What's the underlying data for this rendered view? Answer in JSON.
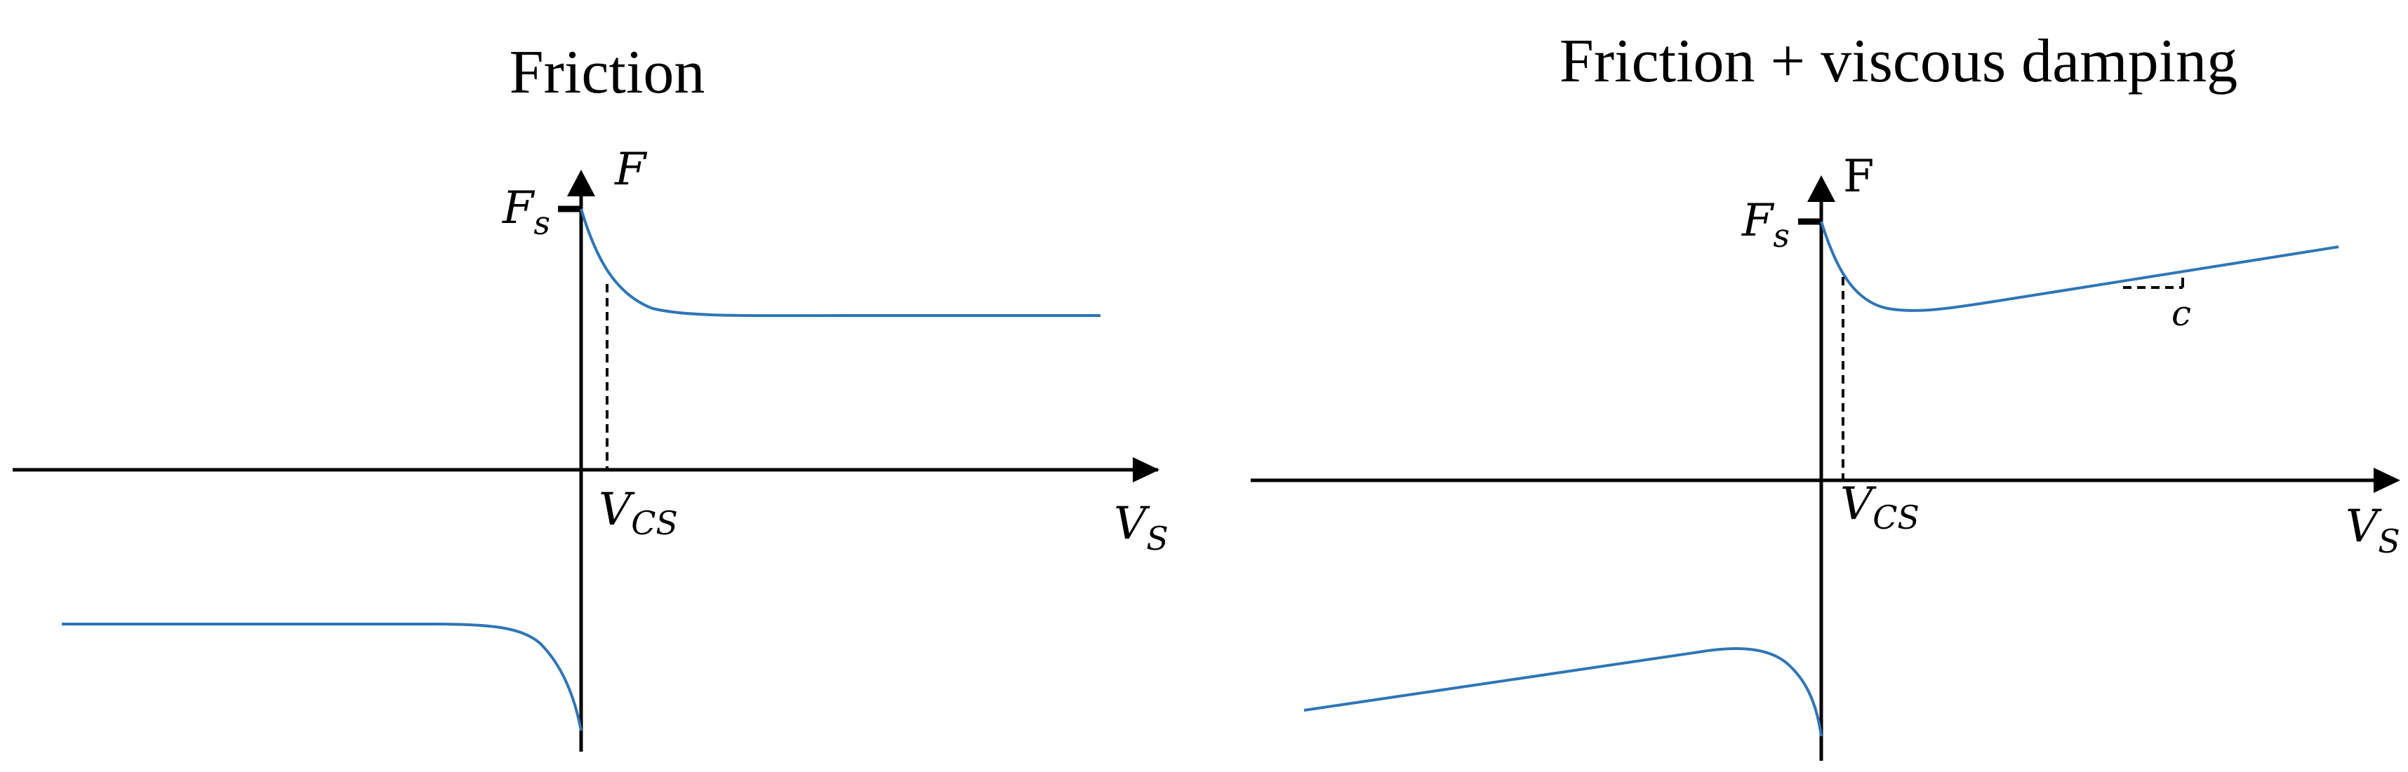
{
  "colors": {
    "curve": "#2E75B6",
    "axis": "#000000"
  },
  "panels": [
    {
      "title": "Friction",
      "y_axis_label": "F",
      "fs_label": "F",
      "fs_sub": "s",
      "vcs_label": "V",
      "vcs_sub": "CS",
      "x_axis_label": "V",
      "x_axis_sub": "S"
    },
    {
      "title": "Friction + viscous damping",
      "y_axis_label": "F",
      "fs_label": "F",
      "fs_sub": "s",
      "vcs_label": "V",
      "vcs_sub": "CS",
      "x_axis_label": "V",
      "x_axis_sub": "S",
      "slope_label": "c"
    }
  ]
}
